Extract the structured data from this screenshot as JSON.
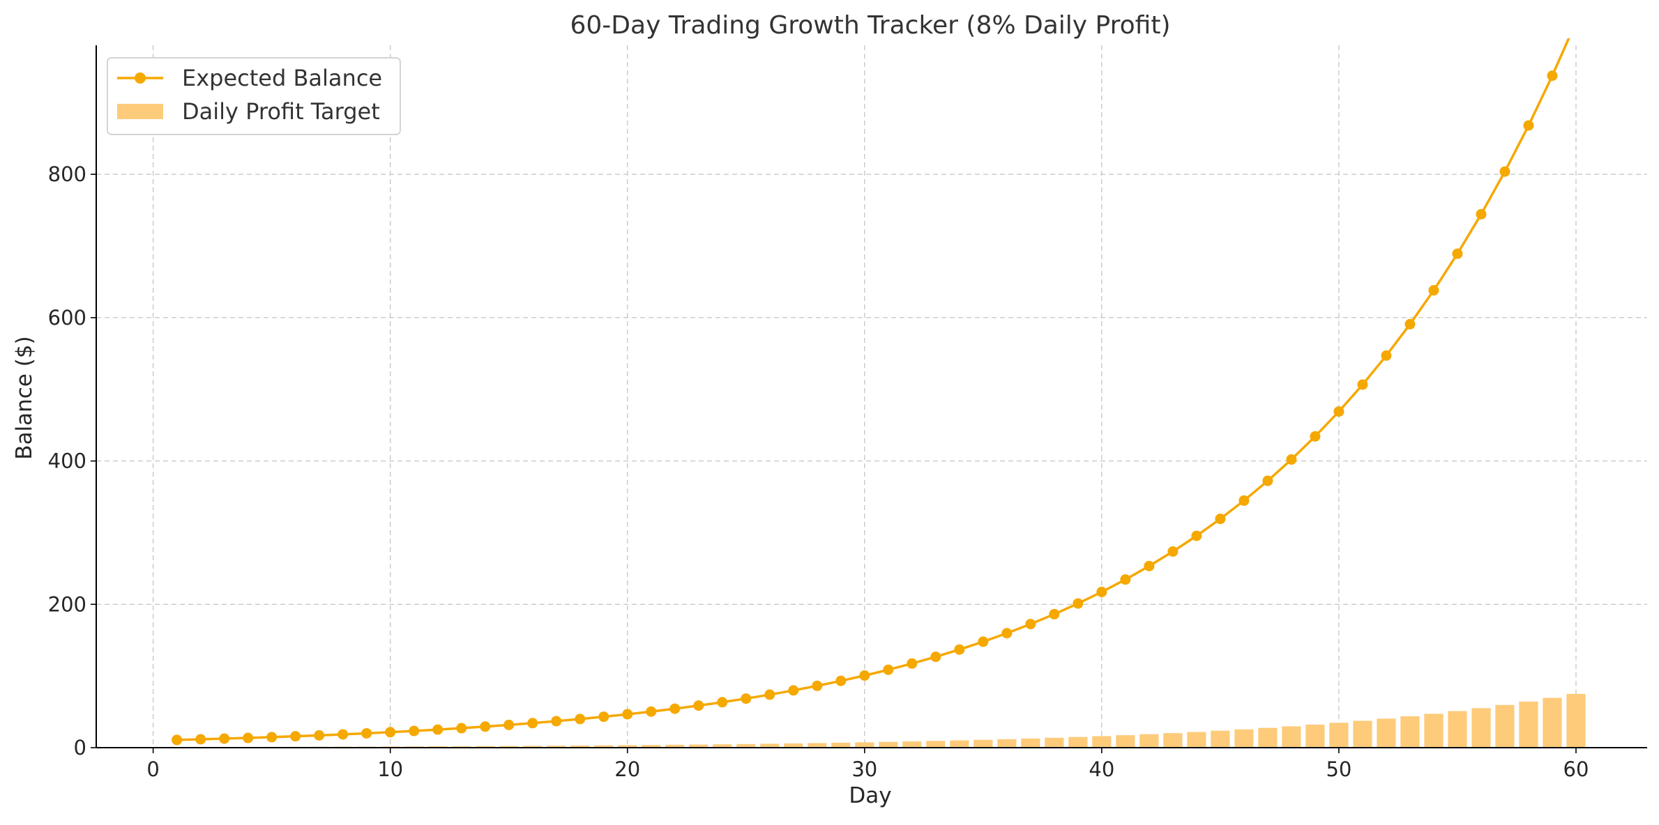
{
  "chart_data": {
    "type": "line",
    "title": "60-Day Trading Growth Tracker (8% Daily Profit)",
    "xlabel": "Day",
    "ylabel": "Balance ($)",
    "xlim": [
      -2.4,
      63.0
    ],
    "ylim": [
      0,
      980
    ],
    "x_ticks": [
      0,
      10,
      20,
      30,
      40,
      50,
      60
    ],
    "y_ticks": [
      0,
      200,
      400,
      600,
      800
    ],
    "grid": true,
    "legend_position": "top-left",
    "x": [
      1,
      2,
      3,
      4,
      5,
      6,
      7,
      8,
      9,
      10,
      11,
      12,
      13,
      14,
      15,
      16,
      17,
      18,
      19,
      20,
      21,
      22,
      23,
      24,
      25,
      26,
      27,
      28,
      29,
      30,
      31,
      32,
      33,
      34,
      35,
      36,
      37,
      38,
      39,
      40,
      41,
      42,
      43,
      44,
      45,
      46,
      47,
      48,
      49,
      50,
      51,
      52,
      53,
      54,
      55,
      56,
      57,
      58,
      59,
      60
    ],
    "series": [
      {
        "name": "Expected Balance",
        "type": "line",
        "color": "#F5A800",
        "values": [
          10.8,
          11.66,
          12.6,
          13.6,
          14.69,
          15.87,
          17.14,
          18.51,
          19.99,
          21.59,
          23.32,
          25.18,
          27.2,
          29.37,
          31.72,
          34.26,
          37.0,
          39.96,
          43.16,
          46.61,
          50.34,
          54.37,
          58.72,
          63.41,
          68.48,
          73.96,
          79.88,
          86.27,
          93.17,
          100.63,
          108.68,
          117.37,
          126.76,
          136.9,
          147.85,
          159.68,
          172.46,
          186.25,
          201.15,
          217.25,
          234.63,
          253.4,
          273.67,
          295.56,
          319.21,
          344.74,
          372.32,
          402.11,
          434.28,
          469.02,
          506.54,
          547.07,
          590.83,
          638.1,
          689.15,
          744.28,
          803.83,
          868.13,
          937.58,
          1012.59
        ]
      },
      {
        "name": "Daily Profit Target",
        "type": "bar",
        "color": "#FDCB7A",
        "values": [
          0.8,
          0.86,
          0.93,
          1.0,
          1.08,
          1.18,
          1.27,
          1.37,
          1.48,
          1.6,
          1.73,
          1.87,
          2.01,
          2.18,
          2.35,
          2.54,
          2.74,
          2.96,
          3.2,
          3.45,
          3.73,
          4.03,
          4.35,
          4.7,
          5.07,
          5.48,
          5.92,
          6.39,
          6.9,
          7.45,
          8.05,
          8.69,
          9.39,
          10.14,
          10.95,
          11.83,
          12.77,
          13.8,
          14.9,
          16.09,
          17.38,
          18.77,
          20.27,
          21.89,
          23.65,
          25.54,
          27.58,
          29.79,
          32.17,
          34.74,
          37.52,
          40.52,
          43.77,
          47.27,
          51.05,
          55.13,
          59.54,
          64.31,
          69.45,
          75.0
        ]
      }
    ]
  }
}
